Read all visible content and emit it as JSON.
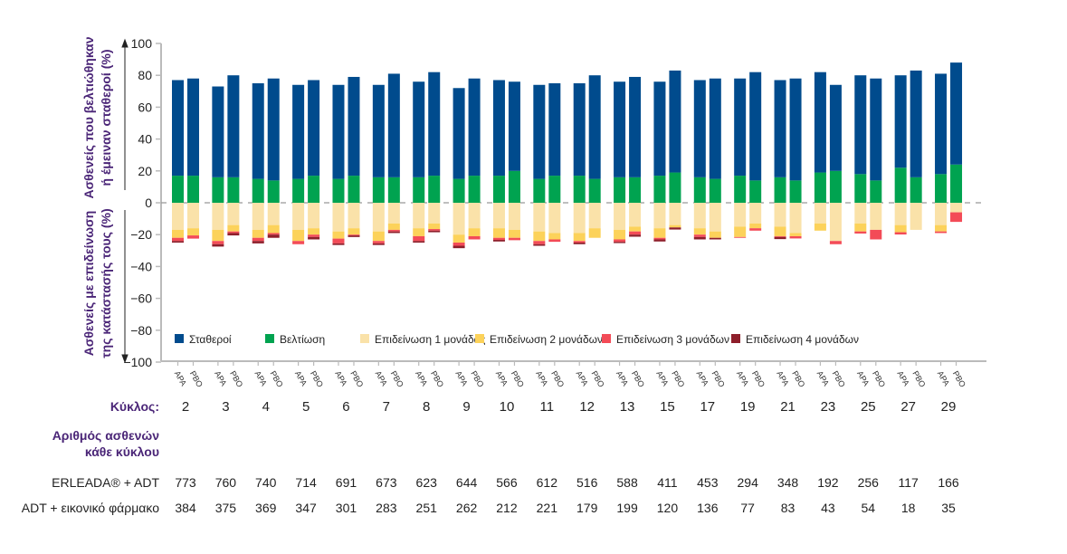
{
  "chart_data": {
    "type": "bar",
    "stacked": true,
    "ylabel_top": [
      "Ασθενείς που βελτιώθηκαν",
      "ή έμειναν σταθεροί (%)"
    ],
    "ylabel_bottom": [
      "Ασθενείς με επιδείνωση",
      "της κατάστασής τους (%)"
    ],
    "ylim": [
      -100,
      100
    ],
    "yticks": [
      100,
      80,
      60,
      40,
      20,
      0,
      -20,
      -40,
      -60,
      -80,
      -100
    ],
    "ytick_labels": [
      "100",
      "80",
      "60",
      "40",
      "20",
      "0",
      "−20",
      "−40",
      "−60",
      "−80",
      "−100"
    ],
    "grid": false,
    "zero_line": "dashed",
    "legend_placement": "bottom-inside",
    "arms": [
      "APA",
      "PBO"
    ],
    "cycle_label": "Κύκλος:",
    "categories": [
      "2",
      "3",
      "4",
      "5",
      "6",
      "7",
      "8",
      "9",
      "10",
      "11",
      "12",
      "13",
      "15",
      "17",
      "19",
      "21",
      "23",
      "25",
      "27",
      "29"
    ],
    "series": [
      {
        "name": "Σταθεροί",
        "key": "stable",
        "color": "#004b8d",
        "APA": [
          60,
          57,
          60,
          59,
          59,
          58,
          60,
          57,
          60,
          59,
          58,
          60,
          59,
          61,
          61,
          61,
          63,
          62,
          58,
          63
        ],
        "PBO": [
          61,
          64,
          64,
          60,
          62,
          65,
          65,
          61,
          56,
          58,
          65,
          63,
          64,
          63,
          68,
          64,
          54,
          64,
          67,
          64
        ]
      },
      {
        "name": "Βελτίωση",
        "key": "improved",
        "color": "#00a350",
        "APA": [
          17,
          16,
          15,
          15,
          15,
          16,
          16,
          15,
          17,
          15,
          17,
          16,
          17,
          16,
          17,
          16,
          19,
          18,
          22,
          18
        ],
        "PBO": [
          17,
          16,
          14,
          17,
          17,
          16,
          17,
          17,
          20,
          17,
          15,
          16,
          19,
          15,
          14,
          14,
          20,
          14,
          16,
          24
        ]
      },
      {
        "name": "Επιδείνωση 1 μονάδας",
        "key": "w1",
        "color": "#fae2a9",
        "APA": [
          -17,
          -17,
          -17,
          -17,
          -18,
          -18,
          -16,
          -20,
          -16,
          -18,
          -19,
          -17,
          -16,
          -16,
          -15,
          -15,
          -13,
          -13,
          -14,
          -14
        ],
        "PBO": [
          -16,
          -14,
          -14,
          -16,
          -16,
          -13,
          -13,
          -16,
          -17,
          -19,
          -16,
          -15,
          -14,
          -18,
          -13,
          -19,
          -24,
          -17,
          -17,
          -6
        ]
      },
      {
        "name": "Επιδείνωση 2 μονάδων",
        "key": "w2",
        "color": "#fcd25a",
        "APA": [
          -5,
          -7,
          -5,
          -7,
          -4.5,
          -6,
          -5,
          -5,
          -6,
          -6,
          -5,
          -6,
          -6,
          -4,
          -6.5,
          -6,
          -4.5,
          -5,
          -4.5,
          -4
        ],
        "PBO": [
          -4.5,
          -4,
          -5,
          -4,
          -4,
          -4,
          -3.5,
          -5,
          -5,
          -4,
          -6,
          -3,
          -1.5,
          -4,
          -3,
          -2,
          0,
          0,
          0,
          0
        ]
      },
      {
        "name": "Επιδείνωση 3 μονάδων",
        "key": "w3",
        "color": "#f34b57",
        "APA": [
          -2,
          -2,
          -2,
          -2,
          -3,
          -1.5,
          -3,
          -2,
          -1.3,
          -2,
          -1,
          -1.5,
          -1,
          -1.5,
          -0.5,
          -0.5,
          0,
          -1.3,
          -1.4,
          -1
        ],
        "PBO": [
          -2,
          -1,
          -1,
          -1.5,
          -0.5,
          -1,
          -1,
          -2,
          -1.5,
          -1.5,
          0,
          -2,
          0,
          0,
          -1.5,
          -1.4,
          -2,
          -6,
          0,
          -6
        ]
      },
      {
        "name": "Επιδείνωση 4 μονάδων",
        "key": "w4",
        "color": "#8e1f2b",
        "APA": [
          -1,
          -1.5,
          -1.5,
          0,
          -1,
          -1,
          -1,
          -1.5,
          -1,
          -1,
          -1,
          -0.8,
          -1.3,
          -1.5,
          0,
          -1.3,
          0,
          0,
          0,
          0
        ],
        "PBO": [
          0,
          -1.5,
          -2,
          -1.5,
          -1,
          -1,
          -1,
          0,
          0,
          0,
          0,
          -1.3,
          -1.3,
          -1,
          0,
          0,
          0,
          0,
          0,
          0
        ]
      }
    ]
  },
  "patients_table": {
    "header": [
      "Αριθμός ασθενών",
      "κάθε κύκλου"
    ],
    "rows": [
      {
        "label": "ERLEADA® + ADT",
        "values": [
          "773",
          "760",
          "740",
          "714",
          "691",
          "673",
          "623",
          "644",
          "566",
          "612",
          "516",
          "588",
          "411",
          "453",
          "294",
          "348",
          "192",
          "256",
          "117",
          "166"
        ]
      },
      {
        "label": "ADT + εικονικό φάρμακο",
        "values": [
          "384",
          "375",
          "369",
          "347",
          "301",
          "283",
          "251",
          "262",
          "212",
          "221",
          "179",
          "199",
          "120",
          "136",
          "77",
          "83",
          "43",
          "54",
          "18",
          "35"
        ]
      }
    ]
  }
}
